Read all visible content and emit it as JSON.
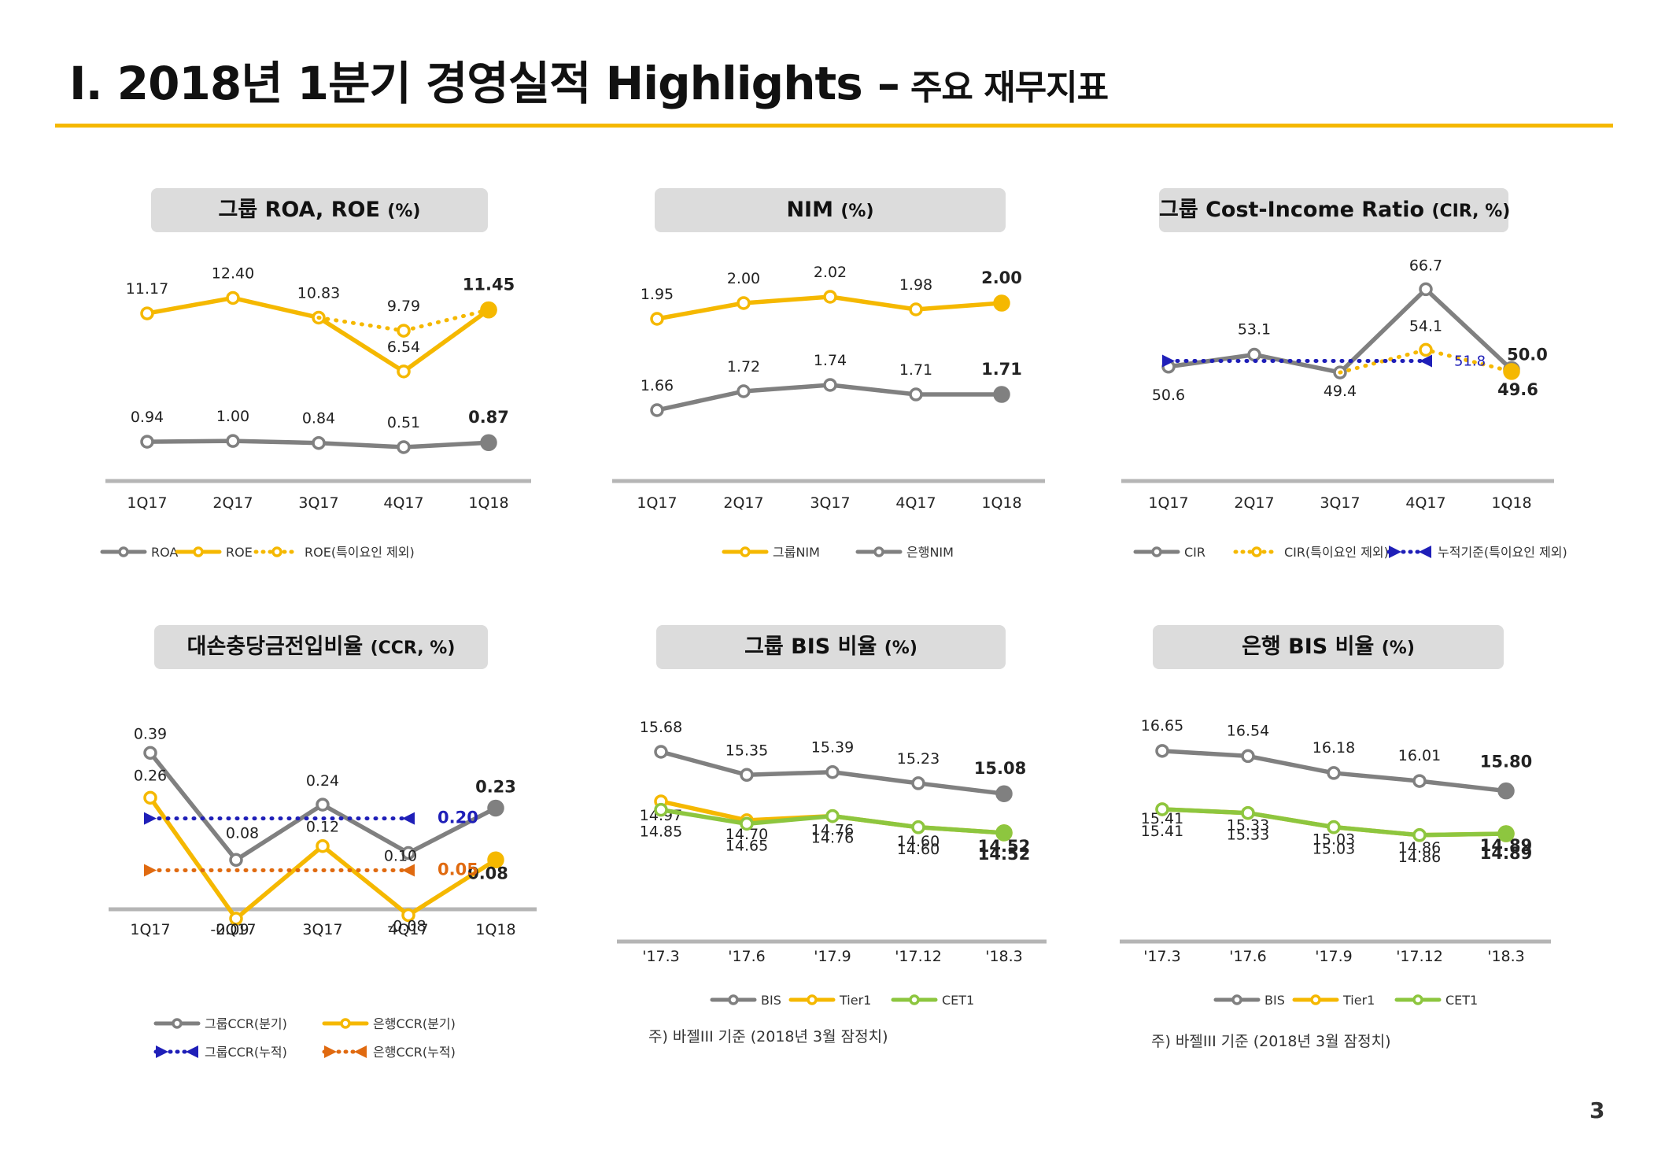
{
  "page": {
    "title_main": "Ⅰ. 2018년 1분기 경영실적 Highlights –",
    "title_sub": "주요 재무지표",
    "page_number": "3",
    "accent_color": "#F5B800"
  },
  "chart_data": [
    {
      "id": "roa-roe",
      "type": "line",
      "title": "그룹 ROA, ROE",
      "unit": "(%)",
      "categories": [
        "1Q17",
        "2Q17",
        "3Q17",
        "4Q17",
        "1Q18"
      ],
      "ylim": [
        -1.5,
        14.5
      ],
      "series": [
        {
          "name": "ROA",
          "values": [
            0.94,
            1.0,
            0.84,
            0.51,
            0.87
          ],
          "labels": [
            "0.94",
            "1.00",
            "0.84",
            "0.51",
            "0.87"
          ],
          "color": "#808080",
          "style": "solid"
        },
        {
          "name": "ROE",
          "values": [
            11.17,
            12.4,
            10.83,
            6.54,
            11.45
          ],
          "labels": [
            "11.17",
            "12.40",
            "10.83",
            "6.54",
            "11.45"
          ],
          "color": "#F5B800",
          "style": "solid"
        },
        {
          "name": "ROE(특이요인 제외)",
          "values": [
            null,
            null,
            10.83,
            9.79,
            11.45
          ],
          "labels": [
            "",
            "",
            "",
            "9.79",
            ""
          ],
          "color": "#F5B800",
          "style": "dotted"
        }
      ]
    },
    {
      "id": "nim",
      "type": "line",
      "title": "NIM",
      "unit": "(%)",
      "categories": [
        "1Q17",
        "2Q17",
        "3Q17",
        "4Q17",
        "1Q18"
      ],
      "ylim": [
        1.45,
        2.15
      ],
      "series": [
        {
          "name": "그룹NIM",
          "values": [
            1.95,
            2.0,
            2.02,
            1.98,
            2.0
          ],
          "labels": [
            "1.95",
            "2.00",
            "2.02",
            "1.98",
            "2.00"
          ],
          "color": "#F5B800",
          "style": "solid"
        },
        {
          "name": "은행NIM",
          "values": [
            1.66,
            1.72,
            1.74,
            1.71,
            1.71
          ],
          "labels": [
            "1.66",
            "1.72",
            "1.74",
            "1.71",
            "1.71"
          ],
          "color": "#808080",
          "style": "solid"
        }
      ]
    },
    {
      "id": "cir",
      "type": "line",
      "title": "그룹 Cost-Income Ratio",
      "unit": "(CIR, %)",
      "categories": [
        "1Q17",
        "2Q17",
        "3Q17",
        "4Q17",
        "1Q18"
      ],
      "ylim": [
        36,
        72
      ],
      "series": [
        {
          "name": "CIR",
          "values": [
            50.6,
            53.1,
            49.4,
            66.7,
            50.0
          ],
          "labels": [
            "50.6",
            "53.1",
            "49.4",
            "66.7",
            "50.0"
          ],
          "color": "#808080",
          "style": "solid"
        },
        {
          "name": "CIR(특이요인 제외)",
          "values": [
            null,
            null,
            49.4,
            54.1,
            49.6
          ],
          "labels": [
            "",
            "",
            "",
            "54.1",
            "49.6"
          ],
          "color": "#F5B800",
          "style": "dotted"
        },
        {
          "name": "누적기준(특이요인 제외)",
          "values": [
            51.8,
            51.8,
            51.8,
            51.8,
            null
          ],
          "labels": [
            "",
            "",
            "",
            "51.8",
            ""
          ],
          "color": "#1F1FB8",
          "style": "dotted"
        }
      ]
    },
    {
      "id": "ccr",
      "type": "line",
      "title": "대손충당금전입비율",
      "unit": "(CCR, %)",
      "categories": [
        "1Q17",
        "2Q17",
        "3Q17",
        "4Q17",
        "1Q18"
      ],
      "ylim": [
        -0.12,
        0.45
      ],
      "series": [
        {
          "name": "그룹CCR(분기)",
          "values": [
            0.39,
            0.08,
            0.24,
            0.1,
            0.23
          ],
          "labels": [
            "0.39",
            "0.08",
            "0.24",
            "0.10",
            "0.23"
          ],
          "color": "#808080",
          "style": "solid"
        },
        {
          "name": "은행CCR(분기)",
          "values": [
            0.26,
            -0.09,
            0.12,
            -0.08,
            0.08
          ],
          "labels": [
            "0.26",
            "-0.09",
            "0.12",
            "-0.08",
            "0.08"
          ],
          "color": "#F5B800",
          "style": "solid"
        },
        {
          "name": "그룹CCR(누적)",
          "values": [
            0.2,
            0.2,
            0.2,
            0.2,
            null
          ],
          "labels": [
            "",
            "",
            "",
            "0.20",
            ""
          ],
          "color": "#1F1FB8",
          "style": "dotted"
        },
        {
          "name": "은행CCR(누적)",
          "values": [
            0.05,
            0.05,
            0.05,
            0.05,
            null
          ],
          "labels": [
            "",
            "",
            "",
            "0.05",
            ""
          ],
          "color": "#E06A10",
          "style": "dotted"
        }
      ]
    },
    {
      "id": "group-bis",
      "type": "line",
      "title": "그룹 BIS 비율",
      "unit": "(%)",
      "categories": [
        "'17.3",
        "'17.6",
        "'17.9",
        "'17.12",
        "'18.3"
      ],
      "ylim": [
        13.2,
        16.3
      ],
      "note": "주) 바젤III 기준 (2018년 3월 잠정치)",
      "series": [
        {
          "name": "BIS",
          "values": [
            15.68,
            15.35,
            15.39,
            15.23,
            15.08
          ],
          "labels": [
            "15.68",
            "15.35",
            "15.39",
            "15.23",
            "15.08"
          ],
          "color": "#808080",
          "style": "solid"
        },
        {
          "name": "Tier1",
          "values": [
            14.97,
            14.7,
            14.76,
            14.6,
            14.52
          ],
          "labels": [
            "14.97",
            "14.70",
            "14.76",
            "14.60",
            "14.52"
          ],
          "color": "#F5B800",
          "style": "solid"
        },
        {
          "name": "CET1",
          "values": [
            14.85,
            14.65,
            14.76,
            14.6,
            14.52
          ],
          "labels": [
            "14.85",
            "14.65",
            "14.76",
            "14.60",
            "14.52"
          ],
          "color": "#8DC63F",
          "style": "solid"
        }
      ]
    },
    {
      "id": "bank-bis",
      "type": "line",
      "title": "은행 BIS 비율",
      "unit": "(%)",
      "categories": [
        "'17.3",
        "'17.6",
        "'17.9",
        "'17.12",
        "'18.3"
      ],
      "ylim": [
        13.2,
        17.3
      ],
      "note": "주) 바젤III 기준 (2018년 3월 잠정치)",
      "series": [
        {
          "name": "BIS",
          "values": [
            16.65,
            16.54,
            16.18,
            16.01,
            15.8
          ],
          "labels": [
            "16.65",
            "16.54",
            "16.18",
            "16.01",
            "15.80"
          ],
          "color": "#808080",
          "style": "solid"
        },
        {
          "name": "Tier1",
          "values": [
            15.41,
            15.33,
            15.03,
            14.86,
            14.89
          ],
          "labels": [
            "15.41",
            "15.33",
            "15.03",
            "14.86",
            "14.89"
          ],
          "color": "#F5B800",
          "style": "solid"
        },
        {
          "name": "CET1",
          "values": [
            15.41,
            15.33,
            15.03,
            14.86,
            14.89
          ],
          "labels": [
            "15.41",
            "15.33",
            "15.03",
            "14.86",
            "14.89"
          ],
          "color": "#8DC63F",
          "style": "solid"
        }
      ]
    }
  ]
}
